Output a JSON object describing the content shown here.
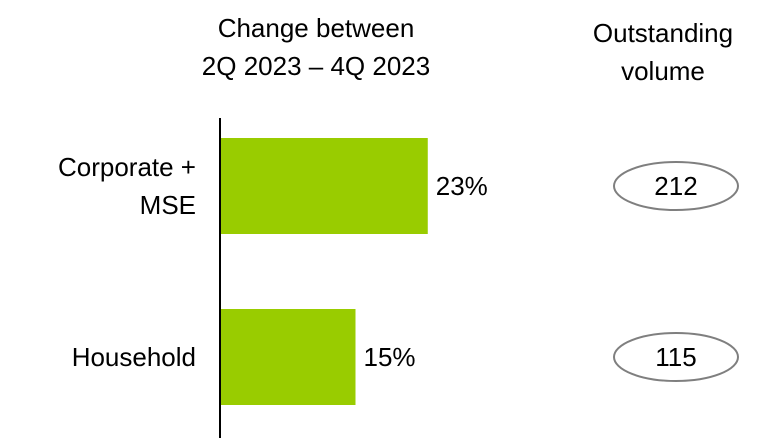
{
  "chart_data": {
    "type": "bar",
    "title": [
      "Change between",
      "2Q 2023 – 4Q 2023"
    ],
    "categories": [
      "Corporate + MSE",
      "Household"
    ],
    "values": [
      23,
      15
    ],
    "value_labels": [
      "23%",
      "15%"
    ],
    "color": "#99cc00",
    "xlim": [
      0,
      30
    ],
    "volume_title": "Outstanding volume",
    "volume": [
      212,
      115
    ]
  }
}
